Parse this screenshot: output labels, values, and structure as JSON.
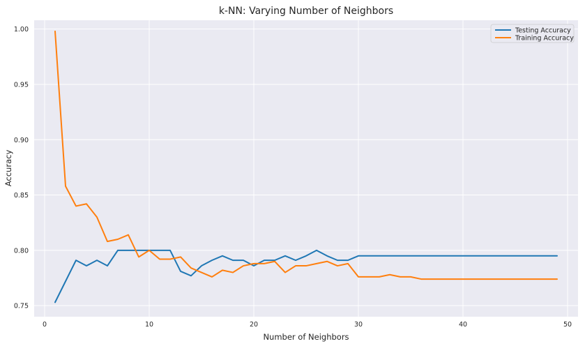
{
  "chart_data": {
    "type": "line",
    "title": "k-NN: Varying Number of Neighbors",
    "xlabel": "Number of Neighbors",
    "ylabel": "Accuracy",
    "xlim": [
      -1,
      51
    ],
    "ylim": [
      0.74,
      1.008
    ],
    "xticks": [
      0,
      10,
      20,
      30,
      40,
      50
    ],
    "yticks": [
      0.75,
      0.8,
      0.85,
      0.9,
      0.95,
      1.0
    ],
    "grid": true,
    "legend_position": "top-right",
    "x": [
      1,
      2,
      3,
      4,
      5,
      6,
      7,
      8,
      9,
      10,
      11,
      12,
      13,
      14,
      15,
      16,
      17,
      18,
      19,
      20,
      21,
      22,
      23,
      24,
      25,
      26,
      27,
      28,
      29,
      30,
      31,
      32,
      33,
      34,
      35,
      36,
      37,
      38,
      39,
      40,
      41,
      42,
      43,
      44,
      45,
      46,
      47,
      48,
      49
    ],
    "series": [
      {
        "name": "Testing Accuracy",
        "color": "#1f77b4",
        "values": [
          0.753,
          0.772,
          0.791,
          0.786,
          0.791,
          0.786,
          0.8,
          0.8,
          0.8,
          0.8,
          0.8,
          0.8,
          0.781,
          0.777,
          0.786,
          0.791,
          0.795,
          0.791,
          0.791,
          0.786,
          0.791,
          0.791,
          0.795,
          0.791,
          0.795,
          0.8,
          0.795,
          0.791,
          0.791,
          0.795,
          0.795,
          0.795,
          0.795,
          0.795,
          0.795,
          0.795,
          0.795,
          0.795,
          0.795,
          0.795,
          0.795,
          0.795,
          0.795,
          0.795,
          0.795,
          0.795,
          0.795,
          0.795,
          0.795
        ]
      },
      {
        "name": "Training Accuracy",
        "color": "#ff7f0e",
        "values": [
          0.998,
          0.858,
          0.84,
          0.842,
          0.83,
          0.808,
          0.81,
          0.814,
          0.794,
          0.8,
          0.792,
          0.792,
          0.794,
          0.784,
          0.78,
          0.776,
          0.782,
          0.78,
          0.786,
          0.788,
          0.788,
          0.79,
          0.78,
          0.786,
          0.786,
          0.788,
          0.79,
          0.786,
          0.788,
          0.776,
          0.776,
          0.776,
          0.778,
          0.776,
          0.776,
          0.774,
          0.774,
          0.774,
          0.774,
          0.774,
          0.774,
          0.774,
          0.774,
          0.774,
          0.774,
          0.774,
          0.774,
          0.774,
          0.774
        ]
      }
    ]
  }
}
